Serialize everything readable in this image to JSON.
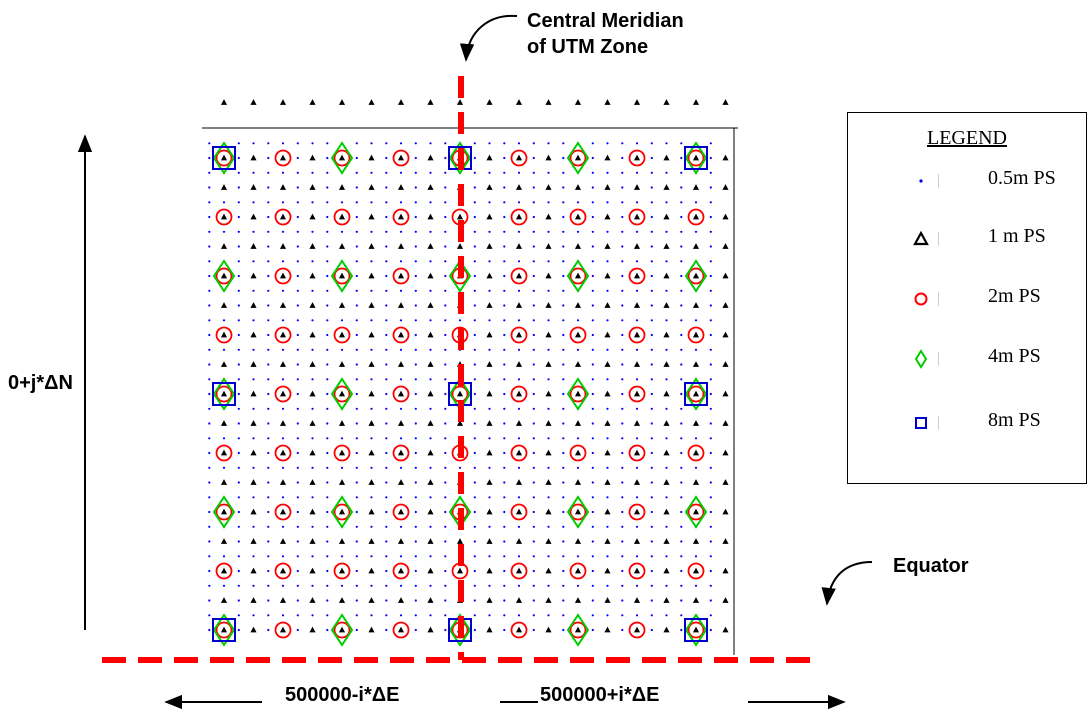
{
  "labels": {
    "central_meridian_line1": "Central Meridian",
    "central_meridian_line2": "of UTM Zone",
    "northing": "0+j*ΔN",
    "easting_left": "500000-i*ΔE",
    "easting_right": "500000+i*ΔE",
    "equator": "Equator"
  },
  "legend": {
    "title": "LEGEND",
    "items": [
      {
        "label": "0.5m PS",
        "symbol": "dot"
      },
      {
        "label": "1 m PS",
        "symbol": "triangle"
      },
      {
        "label": "2m PS",
        "symbol": "circle"
      },
      {
        "label": "4m PS",
        "symbol": "diamond"
      },
      {
        "label": "8m PS",
        "symbol": "square"
      }
    ]
  },
  "colors": {
    "dot": "#0000ff",
    "triangle": "#000000",
    "circle": "#ff0000",
    "diamond": "#00cc00",
    "square": "#0000cc",
    "meridian": "#ff0000",
    "equator": "#ff0000",
    "arrows": "#000000"
  }
}
